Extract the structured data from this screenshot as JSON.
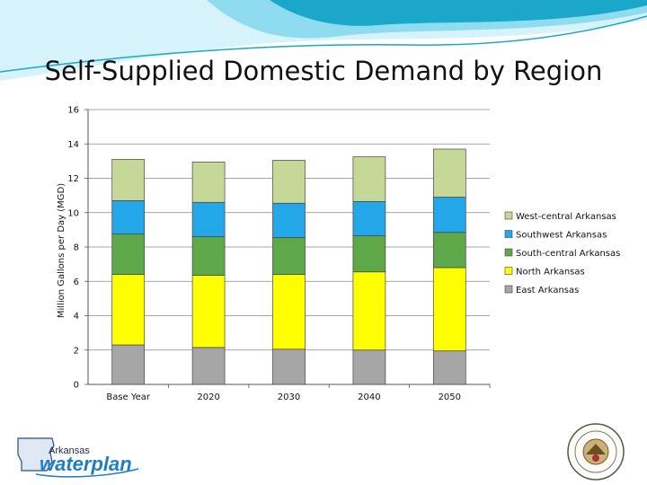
{
  "slide": {
    "title": "Self-Supplied Domestic Demand by Region"
  },
  "logo": {
    "text_small": "Arkansas",
    "text_big": "waterplan"
  },
  "colors": {
    "wave_dark": "#1aa7c9",
    "wave_light": "#8fdcf0",
    "gridline": "#888888"
  },
  "chart_data": {
    "type": "bar",
    "stacked": true,
    "title": "",
    "xlabel": "",
    "ylabel": "Million Gallons per Day (MGD)",
    "ylim": [
      0,
      16
    ],
    "yticks": [
      0,
      2,
      4,
      6,
      8,
      10,
      12,
      14,
      16
    ],
    "grid": true,
    "legend_position": "right",
    "categories": [
      "Base Year",
      "2020",
      "2030",
      "2040",
      "2050"
    ],
    "series": [
      {
        "name": "East Arkansas",
        "color": "#a6a6a6",
        "values": [
          2.3,
          2.15,
          2.05,
          2.0,
          1.95
        ]
      },
      {
        "name": "North Arkansas",
        "color": "#ffff00",
        "values": [
          4.1,
          4.2,
          4.35,
          4.55,
          4.85
        ]
      },
      {
        "name": "South-central Arkansas",
        "color": "#5ea84a",
        "values": [
          2.35,
          2.25,
          2.15,
          2.1,
          2.05
        ]
      },
      {
        "name": "Southwest Arkansas",
        "color": "#23a7e8",
        "values": [
          1.95,
          2.0,
          2.0,
          2.0,
          2.05
        ]
      },
      {
        "name": "West-central Arkansas",
        "color": "#c6d898",
        "values": [
          2.4,
          2.35,
          2.5,
          2.6,
          2.8
        ]
      }
    ],
    "legend_order": [
      "West-central Arkansas",
      "Southwest Arkansas",
      "South-central Arkansas",
      "North Arkansas",
      "East Arkansas"
    ]
  }
}
